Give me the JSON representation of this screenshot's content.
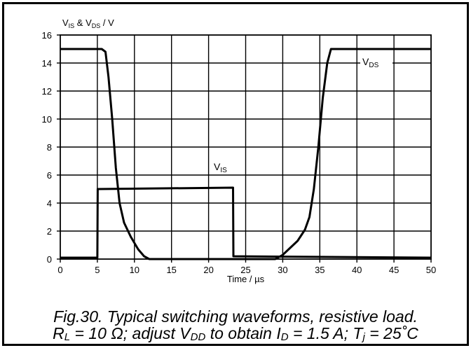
{
  "chart_data": {
    "type": "line",
    "ylabel_parts": [
      "V",
      "IS",
      " & V",
      "DS",
      " / V"
    ],
    "xlabel": "Time / µs",
    "xlim": [
      0,
      50
    ],
    "ylim": [
      0,
      16
    ],
    "x_ticks": [
      0,
      5,
      10,
      15,
      20,
      25,
      30,
      35,
      40,
      45,
      50
    ],
    "y_ticks": [
      0,
      2,
      4,
      6,
      8,
      10,
      12,
      14,
      16
    ],
    "grid": true,
    "series": [
      {
        "name": "VDS",
        "label_main": "V",
        "label_sub": "DS",
        "points": [
          [
            0,
            15
          ],
          [
            5.6,
            15
          ],
          [
            6.1,
            14.8
          ],
          [
            6.5,
            13.0
          ],
          [
            7.0,
            10.0
          ],
          [
            7.5,
            6.5
          ],
          [
            8.0,
            4.0
          ],
          [
            8.6,
            2.6
          ],
          [
            9.5,
            1.6
          ],
          [
            10.5,
            0.7
          ],
          [
            11.3,
            0.2
          ],
          [
            12.0,
            0
          ],
          [
            29.0,
            0
          ],
          [
            30.0,
            0.3
          ],
          [
            31.0,
            0.8
          ],
          [
            32.0,
            1.3
          ],
          [
            33.0,
            2.1
          ],
          [
            33.6,
            3.0
          ],
          [
            34.2,
            5.0
          ],
          [
            34.8,
            8.0
          ],
          [
            35.4,
            11.5
          ],
          [
            36.0,
            14.0
          ],
          [
            36.5,
            15
          ],
          [
            50,
            15
          ]
        ]
      },
      {
        "name": "VIS",
        "label_main": "V",
        "label_sub": "IS",
        "points": [
          [
            0,
            0.1
          ],
          [
            5.0,
            0.1
          ],
          [
            5.05,
            5.0
          ],
          [
            23.3,
            5.1
          ],
          [
            23.35,
            0.2
          ],
          [
            50,
            0.1
          ]
        ]
      }
    ]
  },
  "caption": {
    "line1": "Fig.30.   Typical switching waveforms, resistive load.",
    "line2_parts": [
      "R",
      "L",
      " = 10 Ω; adjust V",
      "DD",
      " to obtain I",
      "D",
      " = 1.5 A; T",
      "j",
      " = 25˚C"
    ]
  }
}
